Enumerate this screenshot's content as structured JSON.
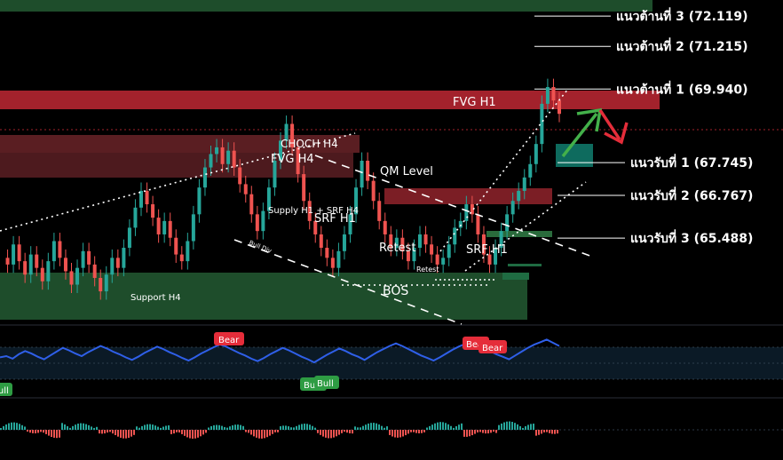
{
  "chart_data": {
    "type": "line",
    "title": "",
    "xlabel": "",
    "ylabel": "",
    "ylim": [
      63.0,
      72.6
    ],
    "levels": [
      {
        "label": "แนวต้านที่ 3 (72.119)",
        "value": 72.119,
        "kind": "resistance"
      },
      {
        "label": "แนวต้านที่ 2 (71.215)",
        "value": 71.215,
        "kind": "resistance"
      },
      {
        "label": "แนวต้านที่ 1 (69.940)",
        "value": 69.94,
        "kind": "resistance"
      },
      {
        "label": "แนวรับที่ 1 (67.745)",
        "value": 67.745,
        "kind": "support"
      },
      {
        "label": "แนวรับที่ 2 (66.767)",
        "value": 66.767,
        "kind": "support"
      },
      {
        "label": "แนวรับที่ 3 (65.488)",
        "value": 65.488,
        "kind": "support"
      }
    ],
    "zones": [
      {
        "label": "FVG H1",
        "from": 69.8,
        "to": 70.2,
        "color": "#a3222c"
      },
      {
        "label": "CHOCH H4",
        "from": 68.85,
        "to": 69.15,
        "color": "#5a1e22"
      },
      {
        "label": "FVG H4",
        "from": 68.0,
        "to": 68.9,
        "color": "#4d1a1e"
      },
      {
        "label": "Supply H1 + SRF H4",
        "from": 66.75,
        "to": 67.1,
        "color": "#7b1e25"
      },
      {
        "label": "Support H4",
        "from": 63.3,
        "to": 64.7,
        "color": "#1e4d2b"
      }
    ],
    "annotations": [
      "QM Level",
      "SRF H1",
      "SRF H1",
      "Retest",
      "Retest",
      "BOS",
      "Bull Div"
    ],
    "price_series": {
      "name": "",
      "values": [
        64.9,
        64.7,
        65.3,
        64.8,
        64.4,
        65.0,
        64.6,
        64.2,
        64.8,
        65.4,
        64.9,
        64.5,
        64.1,
        64.6,
        65.1,
        64.7,
        64.3,
        63.9,
        64.4,
        64.9,
        64.6,
        65.2,
        65.8,
        66.4,
        66.9,
        66.5,
        66.1,
        65.6,
        66.0,
        65.5,
        65.0,
        64.8,
        65.4,
        66.2,
        67.0,
        67.6,
        68.0,
        68.2,
        67.7,
        68.1,
        67.6,
        67.1,
        66.8,
        66.2,
        65.7,
        66.3,
        67.0,
        67.8,
        68.4,
        68.9,
        68.2,
        67.4,
        66.6,
        66.0,
        65.6,
        65.2,
        64.9,
        64.6,
        65.1,
        65.6,
        66.2,
        67.0,
        67.8,
        67.2,
        66.6,
        66.0,
        65.6,
        65.2,
        65.5,
        65.1,
        64.8,
        65.2,
        65.6,
        65.3,
        65.0,
        64.7,
        64.9,
        65.3,
        65.8,
        66.0,
        66.5,
        66.2,
        65.6,
        65.0,
        64.7,
        65.2,
        65.7,
        66.2,
        66.6,
        66.9,
        67.3,
        67.7,
        68.3,
        69.5,
        70.0,
        69.6,
        69.2
      ]
    },
    "indicator": {
      "name": "",
      "signals": [
        {
          "label": "Bear",
          "kind": "bear"
        },
        {
          "label": "Bear",
          "kind": "bear"
        },
        {
          "label": "Bear",
          "kind": "bear"
        },
        {
          "label": "Bull",
          "kind": "bull"
        },
        {
          "label": "Bull",
          "kind": "bull"
        },
        {
          "label": "Bull",
          "kind": "bull"
        }
      ],
      "values": [
        40,
        42,
        38,
        45,
        50,
        46,
        41,
        37,
        43,
        49,
        55,
        51,
        46,
        42,
        48,
        53,
        58,
        54,
        49,
        45,
        40,
        36,
        41,
        47,
        52,
        57,
        53,
        48,
        44,
        39,
        35,
        40,
        46,
        51,
        56,
        60,
        57,
        52,
        47,
        43,
        38,
        34,
        39,
        45,
        50,
        55,
        51,
        46,
        41,
        37,
        32,
        38,
        44,
        49,
        54,
        50,
        45,
        41,
        36,
        42,
        48,
        53,
        58,
        62,
        58,
        53,
        48,
        43,
        39,
        35,
        40,
        46,
        52,
        57,
        61,
        65,
        60,
        55,
        50,
        45,
        41,
        37,
        43,
        49,
        55,
        60,
        64,
        68,
        63,
        58
      ]
    }
  }
}
